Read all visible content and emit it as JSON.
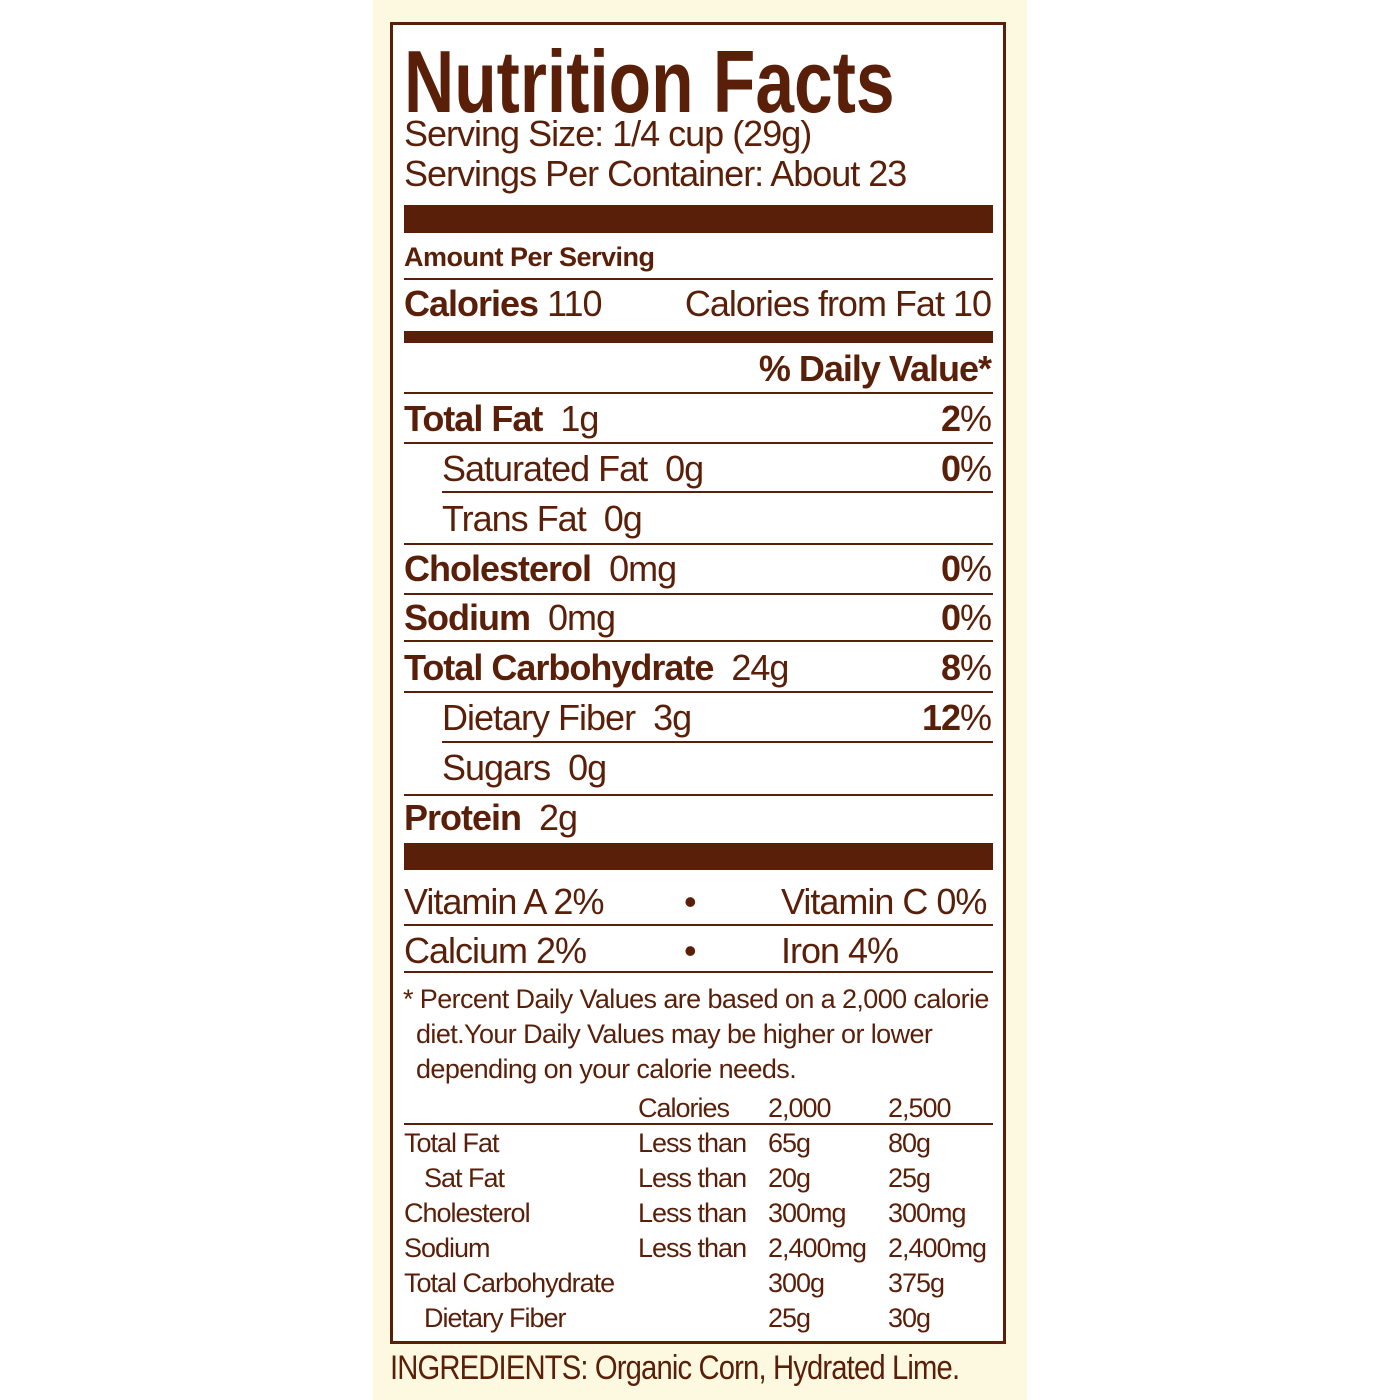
{
  "title": "Nutrition Facts",
  "serving_size": "Serving Size: 1/4 cup (29g)",
  "servings_per_container": "Servings Per Container: About 23",
  "amount_per_serving": "Amount Per Serving",
  "calories": {
    "label": "Calories",
    "value": "110",
    "from_fat": "Calories from Fat 10"
  },
  "daily_value_header": "% Daily Value*",
  "nutrients": [
    {
      "name": "Total Fat",
      "amount": "1g",
      "dv": "2",
      "pct": "%"
    },
    {
      "name": "Saturated Fat",
      "amount": "0g",
      "dv": "0",
      "pct": "%"
    },
    {
      "name": "Trans Fat",
      "amount": "0g"
    },
    {
      "name": "Cholesterol",
      "amount": "0mg",
      "dv": "0",
      "pct": "%"
    },
    {
      "name": "Sodium",
      "amount": "0mg",
      "dv": "0",
      "pct": "%"
    },
    {
      "name": "Total Carbohydrate",
      "amount": "24g",
      "dv": "8",
      "pct": "%"
    },
    {
      "name": "Dietary Fiber",
      "amount": "3g",
      "dv": "12",
      "pct": "%"
    },
    {
      "name": "Sugars",
      "amount": "0g"
    },
    {
      "name": "Protein",
      "amount": "2g"
    }
  ],
  "vitamins": [
    {
      "left": "Vitamin A 2%",
      "bullet": "•",
      "right": "Vitamin C 0%"
    },
    {
      "left": "Calcium 2%",
      "bullet": "•",
      "right": "Iron 4%"
    }
  ],
  "footnote": [
    "* Percent Daily Values are based on a 2,000 calorie",
    "diet.Your Daily Values may be higher or lower",
    "depending on your calorie needs."
  ],
  "dv_table": {
    "header": [
      "",
      "Calories",
      "2,000",
      "2,500"
    ],
    "rows": [
      [
        "Total Fat",
        "Less than",
        "65g",
        "80g"
      ],
      [
        "Sat Fat",
        "Less than",
        "20g",
        "25g"
      ],
      [
        "Cholesterol",
        "Less than",
        "300mg",
        "300mg"
      ],
      [
        "Sodium",
        "Less than",
        "2,400mg",
        "2,400mg"
      ],
      [
        "Total Carbohydrate",
        "",
        "300g",
        "375g"
      ],
      [
        "Dietary Fiber",
        "",
        "25g",
        "30g"
      ]
    ]
  },
  "ingredients": "INGREDIENTS: Organic Corn, Hydrated Lime."
}
